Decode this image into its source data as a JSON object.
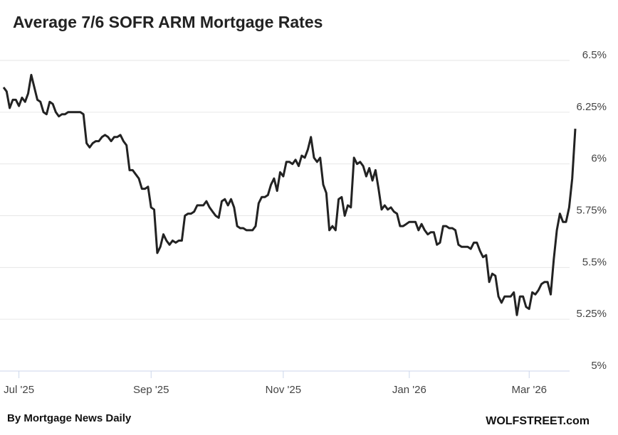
{
  "chart_data": {
    "type": "line",
    "title": "Average 7/6 SOFR ARM Mortgage Rates",
    "source": "By Mortgage News Daily",
    "credit": "WOLFSTREET.com",
    "categories": [
      null,
      null,
      null,
      null,
      null,
      "Jul '25",
      null,
      null,
      null,
      null,
      null,
      null,
      null,
      null,
      null,
      null,
      null,
      null,
      null,
      null,
      null,
      null,
      null,
      null,
      null,
      null,
      null,
      null,
      null,
      null,
      null,
      null,
      null,
      null,
      null,
      null,
      null,
      null,
      null,
      null,
      null,
      null,
      null,
      null,
      null,
      null,
      null,
      null,
      "Sep '25",
      null,
      null,
      null,
      null,
      null,
      null,
      null,
      null,
      null,
      null,
      null,
      null,
      null,
      null,
      null,
      null,
      null,
      null,
      null,
      null,
      null,
      null,
      null,
      null,
      null,
      null,
      null,
      null,
      null,
      null,
      null,
      null,
      null,
      null,
      null,
      null,
      null,
      null,
      null,
      null,
      null,
      null,
      "Nov '25",
      null,
      null,
      null,
      null,
      null,
      null,
      null,
      null,
      null,
      null,
      null,
      null,
      null,
      null,
      null,
      null,
      null,
      null,
      null,
      null,
      null,
      null,
      null,
      null,
      null,
      null,
      null,
      null,
      null,
      null,
      null,
      null,
      null,
      null,
      null,
      null,
      null,
      null,
      null,
      null,
      "Jan '26",
      null,
      null,
      null,
      null,
      null,
      null,
      null,
      null,
      null,
      null,
      null,
      null,
      null,
      null,
      null,
      null,
      null,
      null,
      null,
      null,
      null,
      null,
      null,
      null,
      null,
      null,
      null,
      null,
      null,
      null,
      null,
      null,
      null,
      null,
      null,
      null,
      null,
      null,
      "Mar '26",
      null,
      null,
      null,
      null,
      null,
      null,
      null,
      null,
      null,
      null,
      null,
      null,
      null,
      null,
      null
    ],
    "series": [
      {
        "name": "7/6 SOFR ARM",
        "color": "#222222",
        "values": [
          6.37,
          6.35,
          6.27,
          6.31,
          6.31,
          6.28,
          6.32,
          6.3,
          6.34,
          6.43,
          6.37,
          6.31,
          6.3,
          6.25,
          6.24,
          6.3,
          6.29,
          6.25,
          6.23,
          6.24,
          6.24,
          6.25,
          6.25,
          6.25,
          6.25,
          6.25,
          6.24,
          6.1,
          6.08,
          6.1,
          6.11,
          6.11,
          6.13,
          6.14,
          6.13,
          6.11,
          6.13,
          6.13,
          6.14,
          6.11,
          6.09,
          5.97,
          5.97,
          5.95,
          5.93,
          5.88,
          5.88,
          5.89,
          5.79,
          5.78,
          5.57,
          5.6,
          5.66,
          5.63,
          5.61,
          5.63,
          5.62,
          5.63,
          5.63,
          5.75,
          5.76,
          5.76,
          5.77,
          5.8,
          5.8,
          5.8,
          5.82,
          5.79,
          5.77,
          5.75,
          5.74,
          5.82,
          5.83,
          5.8,
          5.83,
          5.79,
          5.7,
          5.69,
          5.69,
          5.68,
          5.68,
          5.68,
          5.7,
          5.81,
          5.84,
          5.84,
          5.85,
          5.9,
          5.93,
          5.87,
          5.96,
          5.94,
          6.01,
          6.01,
          6.0,
          6.02,
          5.99,
          6.04,
          6.03,
          6.07,
          6.13,
          6.03,
          6.01,
          6.03,
          5.9,
          5.86,
          5.68,
          5.7,
          5.68,
          5.83,
          5.84,
          5.75,
          5.8,
          5.79,
          6.03,
          6.0,
          6.01,
          5.99,
          5.94,
          5.98,
          5.92,
          5.97,
          5.88,
          5.78,
          5.8,
          5.78,
          5.79,
          5.77,
          5.76,
          5.7,
          5.7,
          5.71,
          5.72,
          5.72,
          5.72,
          5.68,
          5.71,
          5.68,
          5.66,
          5.67,
          5.67,
          5.61,
          5.62,
          5.7,
          5.7,
          5.69,
          5.69,
          5.68,
          5.61,
          5.6,
          5.6,
          5.6,
          5.59,
          5.62,
          5.62,
          5.58,
          5.55,
          5.56,
          5.43,
          5.47,
          5.46,
          5.36,
          5.33,
          5.36,
          5.36,
          5.36,
          5.38,
          5.27,
          5.36,
          5.36,
          5.31,
          5.3,
          5.38,
          5.37,
          5.39,
          5.42,
          5.43,
          5.43,
          5.37,
          5.54,
          5.68,
          5.76,
          5.72,
          5.72,
          5.79,
          5.93,
          6.17
        ]
      }
    ],
    "ylim": [
      5,
      6.5
    ],
    "yticks": [
      {
        "value": 5,
        "label": "5%"
      },
      {
        "value": 5.25,
        "label": "5.25%"
      },
      {
        "value": 5.5,
        "label": "5.5%"
      },
      {
        "value": 5.75,
        "label": "5.75%"
      },
      {
        "value": 6,
        "label": "6%"
      },
      {
        "value": 6.25,
        "label": "6.25%"
      },
      {
        "value": 6.5,
        "label": "6.5%"
      }
    ],
    "grid": true
  }
}
